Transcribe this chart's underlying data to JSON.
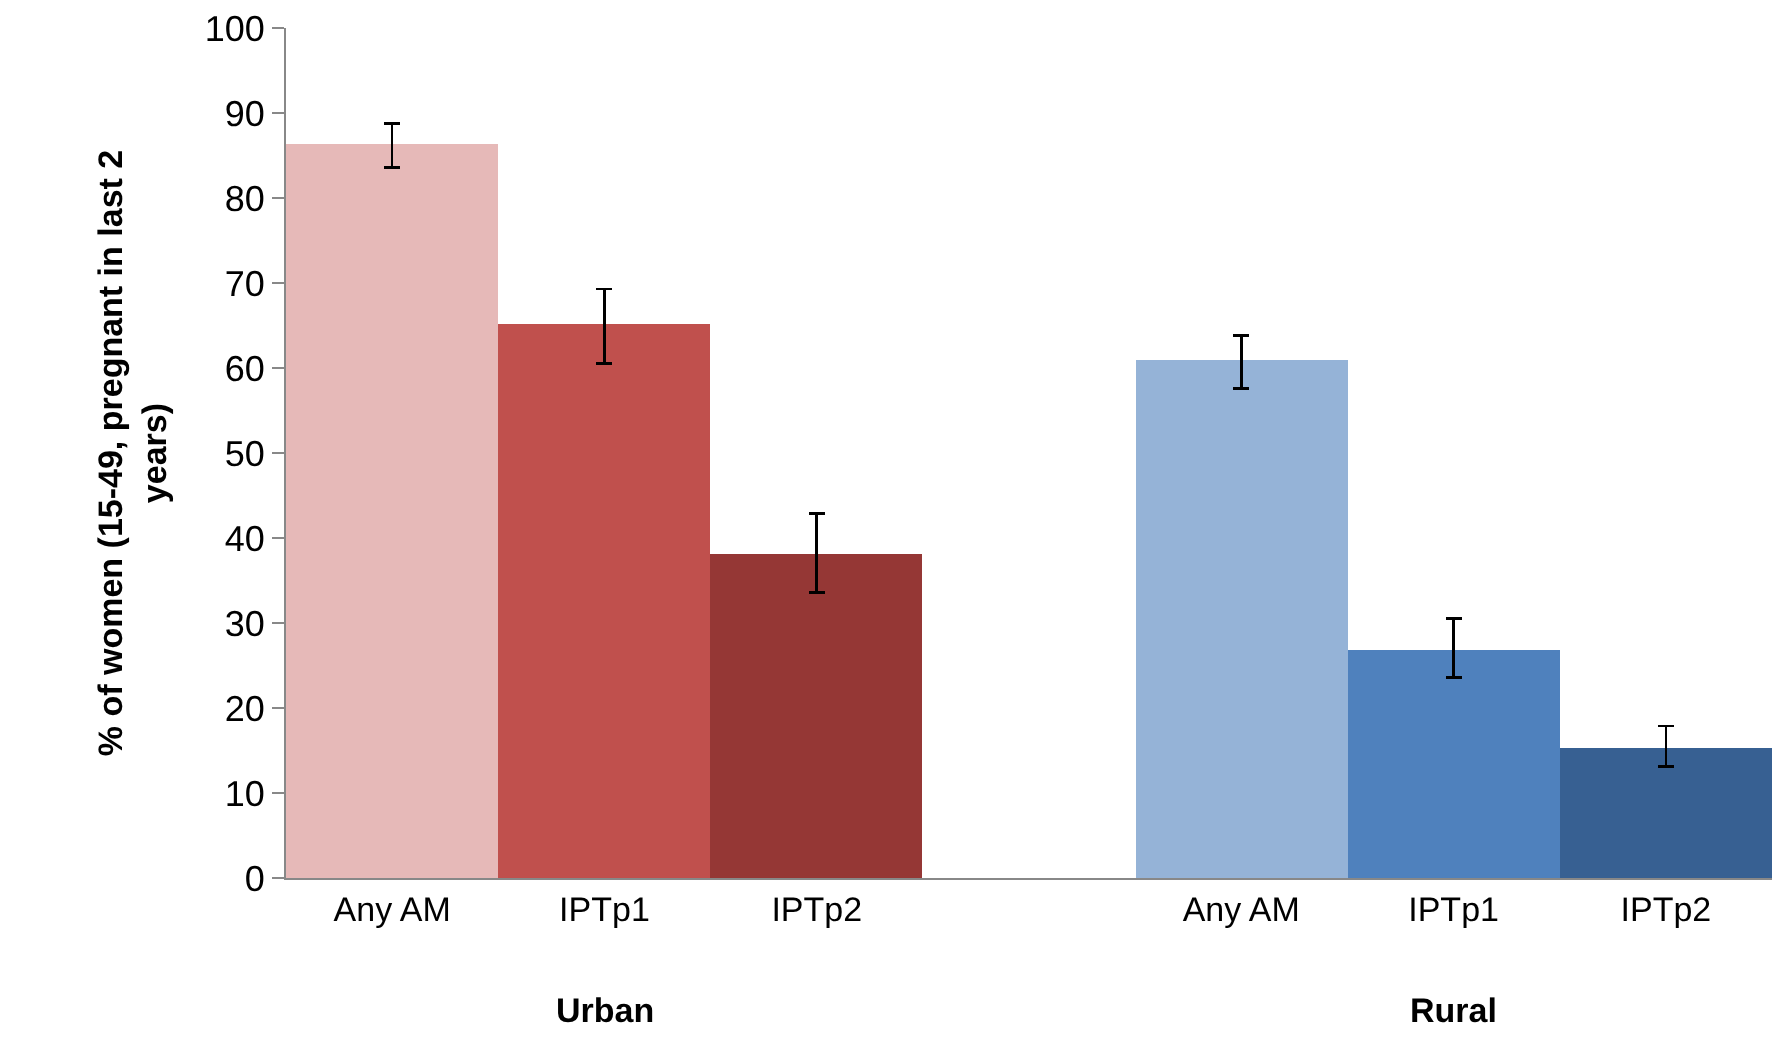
{
  "chart_data": {
    "type": "bar",
    "ylabel": "% of women (15-49, pregnant in last 2 years)",
    "categories": [
      "Any AM",
      "IPTp1",
      "IPTp2",
      null,
      "Any AM",
      "IPTp1",
      "IPTp2"
    ],
    "values": [
      86.4,
      65.2,
      38.1,
      null,
      61,
      26.9,
      15.2
    ],
    "colors": [
      "#e6b9b8",
      "#c0504d",
      "#953735",
      null,
      "#95b3d7",
      "#4f81bd",
      "#376092"
    ],
    "errors": [
      [
        83.6,
        88.8
      ],
      [
        60.5,
        69.3
      ],
      [
        33.6,
        42.9
      ],
      null,
      [
        57.6,
        63.8
      ],
      [
        23.6,
        30.5
      ],
      [
        13.1,
        17.9
      ]
    ],
    "ylim": [
      0,
      100
    ],
    "yticks": [
      0,
      10,
      20,
      30,
      40,
      50,
      60,
      70,
      80,
      90,
      100
    ],
    "annotations": [
      "Urban",
      "Rural"
    ]
  }
}
